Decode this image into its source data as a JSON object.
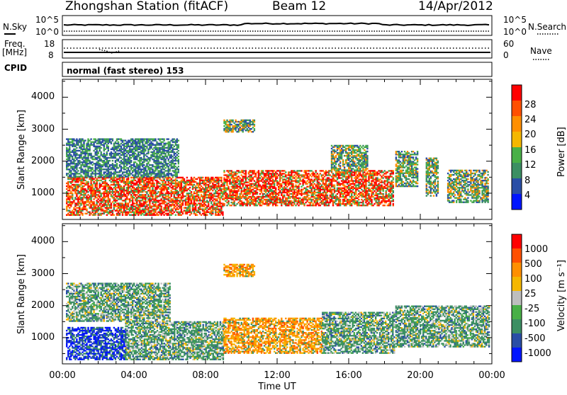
{
  "header": {
    "station": "Zhongshan Station (fitACF)",
    "beam": "Beam 12",
    "date": "14/Apr/2012"
  },
  "top_panels": {
    "nsky_label": "N.Sky",
    "nsky_ticks": [
      "10^5",
      "10^0"
    ],
    "nsearch_label": "N.Search",
    "nsearch_ticks": [
      "10^5",
      "10^0"
    ],
    "freq_label": "Freq.",
    "freq_unit": "[MHz]",
    "freq_ticks": [
      "18",
      "8"
    ],
    "nave_label": "Nave",
    "nave_ticks": [
      "60",
      "0"
    ],
    "cpid_label": "CPID",
    "cpid_text": "normal (fast stereo) 153"
  },
  "chart_data": [
    {
      "type": "heatmap",
      "panel": "power",
      "ylabel": "Slant Range [km]",
      "yticks": [
        "4000",
        "3000",
        "2000",
        "1000"
      ],
      "ylim": [
        180,
        4560
      ],
      "xlim": [
        0,
        24
      ],
      "colorbar": {
        "label": "Power [dB]",
        "ticks": [
          "28",
          "24",
          "20",
          "16",
          "12",
          "8",
          "4"
        ],
        "colors": [
          "#0015ff",
          "#2a4ea6",
          "#3c8f63",
          "#49b047",
          "#f5b700",
          "#ff8f00",
          "#ff5000",
          "#ff0000"
        ]
      },
      "regions": [
        {
          "t0": 0.2,
          "t1": 9.0,
          "r0": 300,
          "r1": 1500,
          "level": "high"
        },
        {
          "t0": 0.2,
          "t1": 6.5,
          "r0": 1500,
          "r1": 2700,
          "level": "low"
        },
        {
          "t0": 9.0,
          "t1": 10.7,
          "r0": 2900,
          "r1": 3300,
          "level": "mid"
        },
        {
          "t0": 9.0,
          "t1": 18.5,
          "r0": 600,
          "r1": 1700,
          "level": "high"
        },
        {
          "t0": 15.0,
          "t1": 17.0,
          "r0": 1700,
          "r1": 2500,
          "level": "mid"
        },
        {
          "t0": 18.6,
          "t1": 19.8,
          "r0": 1200,
          "r1": 2300,
          "level": "mid"
        },
        {
          "t0": 20.3,
          "t1": 21.0,
          "r0": 900,
          "r1": 2100,
          "level": "mid"
        },
        {
          "t0": 21.5,
          "t1": 23.8,
          "r0": 700,
          "r1": 1700,
          "level": "mid"
        }
      ]
    },
    {
      "type": "heatmap",
      "panel": "velocity",
      "ylabel": "Slant Range [km]",
      "yticks": [
        "4000",
        "3000",
        "2000",
        "1000"
      ],
      "ylim": [
        180,
        4560
      ],
      "xlim": [
        0,
        24
      ],
      "colorbar": {
        "label": "Velocity [m s⁻¹]",
        "ticks": [
          "1000",
          "500",
          "100",
          "25",
          "-25",
          "-100",
          "-500",
          "-1000"
        ],
        "colors": [
          "#0015ff",
          "#2a4ea6",
          "#3c8f63",
          "#49b047",
          "#bebebe",
          "#f5b700",
          "#ff8f00",
          "#ff5000",
          "#ff0000"
        ]
      },
      "regions": [
        {
          "t0": 0.2,
          "t1": 3.5,
          "r0": 300,
          "r1": 1300,
          "level": "toward"
        },
        {
          "t0": 3.5,
          "t1": 9.0,
          "r0": 300,
          "r1": 1500,
          "level": "weak"
        },
        {
          "t0": 0.2,
          "t1": 6.0,
          "r0": 1500,
          "r1": 2700,
          "level": "weak"
        },
        {
          "t0": 9.0,
          "t1": 10.7,
          "r0": 2900,
          "r1": 3300,
          "level": "away"
        },
        {
          "t0": 9.0,
          "t1": 14.5,
          "r0": 500,
          "r1": 1600,
          "level": "away"
        },
        {
          "t0": 14.5,
          "t1": 18.5,
          "r0": 500,
          "r1": 1800,
          "level": "weak"
        },
        {
          "t0": 18.6,
          "t1": 23.8,
          "r0": 700,
          "r1": 2000,
          "level": "weak"
        }
      ]
    }
  ],
  "xaxis": {
    "ticks": [
      "00:00",
      "04:00",
      "08:00",
      "12:00",
      "16:00",
      "20:00",
      "00:00"
    ],
    "label": "Time UT"
  }
}
